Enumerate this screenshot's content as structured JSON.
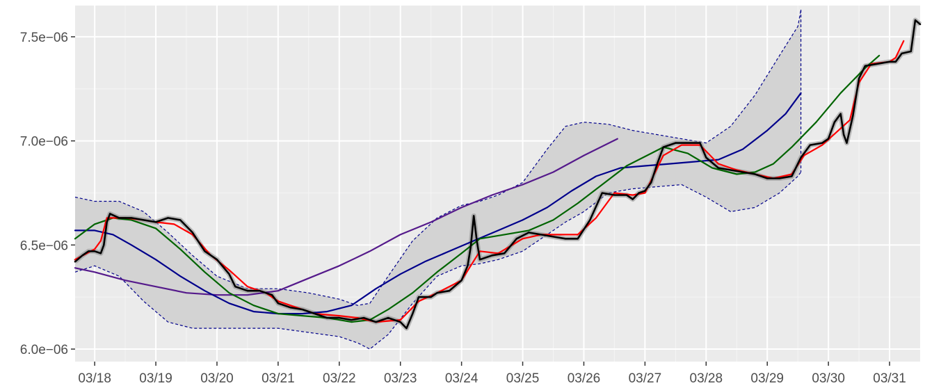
{
  "chart_data": {
    "type": "line",
    "title": "",
    "xlabel": "",
    "ylabel": "",
    "x_tick_labels": [
      "03/18",
      "03/19",
      "03/20",
      "03/21",
      "03/22",
      "03/23",
      "03/24",
      "03/25",
      "03/26",
      "03/27",
      "03/28",
      "03/29",
      "03/30",
      "03/31"
    ],
    "x_tick_days": [
      1,
      2,
      3,
      4,
      5,
      6,
      7,
      8,
      9,
      10,
      11,
      12,
      13,
      14
    ],
    "xlim_days": [
      0.68,
      14.5
    ],
    "y_tick_values": [
      6e-06,
      6.5e-06,
      7e-06,
      7.5e-06
    ],
    "y_tick_labels": [
      "6.0e−06",
      "6.5e−06",
      "7.0e−06",
      "7.5e−06"
    ],
    "ylim": [
      5.94e-06,
      7.65e-06
    ],
    "grid": true,
    "background": "#ebebeb",
    "band": {
      "fill": "#d3d3d3",
      "border_color": "#00008b",
      "upper": [
        [
          0.68,
          6.73e-06
        ],
        [
          1.0,
          6.71e-06
        ],
        [
          1.4,
          6.71e-06
        ],
        [
          1.8,
          6.66e-06
        ],
        [
          2.2,
          6.56e-06
        ],
        [
          2.6,
          6.45e-06
        ],
        [
          3.0,
          6.35e-06
        ],
        [
          3.5,
          6.29e-06
        ],
        [
          4.0,
          6.29e-06
        ],
        [
          4.5,
          6.27e-06
        ],
        [
          5.0,
          6.24e-06
        ],
        [
          5.3,
          6.21e-06
        ],
        [
          5.5,
          6.22e-06
        ],
        [
          5.8,
          6.35e-06
        ],
        [
          6.2,
          6.52e-06
        ],
        [
          6.6,
          6.63e-06
        ],
        [
          7.0,
          6.69e-06
        ],
        [
          7.3,
          6.71e-06
        ],
        [
          7.6,
          6.74e-06
        ],
        [
          8.0,
          6.8e-06
        ],
        [
          8.4,
          6.96e-06
        ],
        [
          8.7,
          7.07e-06
        ],
        [
          9.0,
          7.09e-06
        ],
        [
          9.4,
          7.08e-06
        ],
        [
          9.8,
          7.05e-06
        ],
        [
          10.2,
          7.03e-06
        ],
        [
          10.6,
          7.01e-06
        ],
        [
          11.0,
          6.99e-06
        ],
        [
          11.4,
          7.07e-06
        ],
        [
          11.8,
          7.22e-06
        ],
        [
          12.2,
          7.41e-06
        ],
        [
          12.5,
          7.55e-06
        ],
        [
          12.55,
          7.63e-06
        ]
      ],
      "lower": [
        [
          0.68,
          6.37e-06
        ],
        [
          1.0,
          6.4e-06
        ],
        [
          1.4,
          6.35e-06
        ],
        [
          1.8,
          6.23e-06
        ],
        [
          2.2,
          6.13e-06
        ],
        [
          2.6,
          6.1e-06
        ],
        [
          3.0,
          6.1e-06
        ],
        [
          3.5,
          6.1e-06
        ],
        [
          4.0,
          6.1e-06
        ],
        [
          4.5,
          6.08e-06
        ],
        [
          5.0,
          6.06e-06
        ],
        [
          5.3,
          6.03e-06
        ],
        [
          5.5,
          6e-06
        ],
        [
          5.8,
          6.07e-06
        ],
        [
          6.2,
          6.22e-06
        ],
        [
          6.6,
          6.35e-06
        ],
        [
          7.0,
          6.4e-06
        ],
        [
          7.3,
          6.41e-06
        ],
        [
          7.6,
          6.43e-06
        ],
        [
          8.0,
          6.47e-06
        ],
        [
          8.4,
          6.55e-06
        ],
        [
          8.7,
          6.61e-06
        ],
        [
          9.0,
          6.66e-06
        ],
        [
          9.4,
          6.75e-06
        ],
        [
          9.8,
          6.77e-06
        ],
        [
          10.2,
          6.78e-06
        ],
        [
          10.6,
          6.79e-06
        ],
        [
          11.0,
          6.73e-06
        ],
        [
          11.4,
          6.66e-06
        ],
        [
          11.8,
          6.68e-06
        ],
        [
          12.2,
          6.75e-06
        ],
        [
          12.5,
          6.83e-06
        ],
        [
          12.55,
          6.85e-06
        ]
      ]
    },
    "series": [
      {
        "color": "#000000",
        "width": 2.6,
        "values": [
          [
            0.68,
            6.42e-06
          ],
          [
            0.8,
            6.45e-06
          ],
          [
            0.9,
            6.47e-06
          ],
          [
            1.0,
            6.47e-06
          ],
          [
            1.1,
            6.46e-06
          ],
          [
            1.15,
            6.5e-06
          ],
          [
            1.2,
            6.61e-06
          ],
          [
            1.25,
            6.65e-06
          ],
          [
            1.4,
            6.63e-06
          ],
          [
            1.6,
            6.63e-06
          ],
          [
            1.8,
            6.62e-06
          ],
          [
            2.0,
            6.61e-06
          ],
          [
            2.2,
            6.63e-06
          ],
          [
            2.4,
            6.62e-06
          ],
          [
            2.6,
            6.56e-06
          ],
          [
            2.8,
            6.47e-06
          ],
          [
            3.0,
            6.43e-06
          ],
          [
            3.2,
            6.36e-06
          ],
          [
            3.3,
            6.3e-06
          ],
          [
            3.5,
            6.28e-06
          ],
          [
            3.7,
            6.28e-06
          ],
          [
            3.9,
            6.26e-06
          ],
          [
            4.0,
            6.22e-06
          ],
          [
            4.2,
            6.2e-06
          ],
          [
            4.4,
            6.19e-06
          ],
          [
            4.6,
            6.17e-06
          ],
          [
            4.8,
            6.15e-06
          ],
          [
            5.0,
            6.15e-06
          ],
          [
            5.2,
            6.14e-06
          ],
          [
            5.4,
            6.15e-06
          ],
          [
            5.6,
            6.13e-06
          ],
          [
            5.8,
            6.15e-06
          ],
          [
            6.0,
            6.13e-06
          ],
          [
            6.1,
            6.1e-06
          ],
          [
            6.2,
            6.17e-06
          ],
          [
            6.3,
            6.25e-06
          ],
          [
            6.5,
            6.25e-06
          ],
          [
            6.6,
            6.27e-06
          ],
          [
            6.8,
            6.28e-06
          ],
          [
            7.0,
            6.33e-06
          ],
          [
            7.1,
            6.4e-06
          ],
          [
            7.15,
            6.49e-06
          ],
          [
            7.2,
            6.64e-06
          ],
          [
            7.25,
            6.52e-06
          ],
          [
            7.3,
            6.43e-06
          ],
          [
            7.5,
            6.45e-06
          ],
          [
            7.7,
            6.46e-06
          ],
          [
            7.9,
            6.53e-06
          ],
          [
            8.1,
            6.56e-06
          ],
          [
            8.3,
            6.55e-06
          ],
          [
            8.5,
            6.54e-06
          ],
          [
            8.7,
            6.53e-06
          ],
          [
            8.9,
            6.53e-06
          ],
          [
            9.1,
            6.62e-06
          ],
          [
            9.3,
            6.75e-06
          ],
          [
            9.5,
            6.74e-06
          ],
          [
            9.7,
            6.74e-06
          ],
          [
            9.8,
            6.72e-06
          ],
          [
            9.9,
            6.75e-06
          ],
          [
            10.0,
            6.76e-06
          ],
          [
            10.1,
            6.8e-06
          ],
          [
            10.2,
            6.89e-06
          ],
          [
            10.3,
            6.97e-06
          ],
          [
            10.5,
            6.99e-06
          ],
          [
            10.7,
            6.99e-06
          ],
          [
            10.9,
            6.99e-06
          ],
          [
            11.0,
            6.92e-06
          ],
          [
            11.2,
            6.87e-06
          ],
          [
            11.4,
            6.86e-06
          ],
          [
            11.6,
            6.85e-06
          ],
          [
            11.8,
            6.84e-06
          ],
          [
            12.0,
            6.82e-06
          ],
          [
            12.2,
            6.82e-06
          ],
          [
            12.4,
            6.83e-06
          ],
          [
            12.55,
            6.92e-06
          ],
          [
            12.7,
            6.98e-06
          ],
          [
            12.9,
            6.99e-06
          ],
          [
            13.0,
            7.01e-06
          ],
          [
            13.1,
            7.09e-06
          ],
          [
            13.2,
            7.13e-06
          ],
          [
            13.25,
            7.03e-06
          ],
          [
            13.3,
            6.99e-06
          ],
          [
            13.4,
            7.12e-06
          ],
          [
            13.5,
            7.3e-06
          ],
          [
            13.6,
            7.36e-06
          ],
          [
            13.8,
            7.37e-06
          ],
          [
            14.0,
            7.38e-06
          ],
          [
            14.1,
            7.38e-06
          ],
          [
            14.2,
            7.42e-06
          ],
          [
            14.35,
            7.43e-06
          ],
          [
            14.42,
            7.58e-06
          ],
          [
            14.5,
            7.56e-06
          ]
        ]
      },
      {
        "color": "#ff0000",
        "width": 2.2,
        "values": [
          [
            0.68,
            6.43e-06
          ],
          [
            1.0,
            6.48e-06
          ],
          [
            1.1,
            6.52e-06
          ],
          [
            1.2,
            6.63e-06
          ],
          [
            1.5,
            6.63e-06
          ],
          [
            1.8,
            6.62e-06
          ],
          [
            2.0,
            6.61e-06
          ],
          [
            2.3,
            6.6e-06
          ],
          [
            2.6,
            6.55e-06
          ],
          [
            2.9,
            6.45e-06
          ],
          [
            3.2,
            6.38e-06
          ],
          [
            3.5,
            6.3e-06
          ],
          [
            3.8,
            6.27e-06
          ],
          [
            4.0,
            6.23e-06
          ],
          [
            4.3,
            6.2e-06
          ],
          [
            4.6,
            6.17e-06
          ],
          [
            5.0,
            6.16e-06
          ],
          [
            5.3,
            6.15e-06
          ],
          [
            5.6,
            6.13e-06
          ],
          [
            6.0,
            6.14e-06
          ],
          [
            6.3,
            6.23e-06
          ],
          [
            6.6,
            6.27e-06
          ],
          [
            7.0,
            6.33e-06
          ],
          [
            7.3,
            6.47e-06
          ],
          [
            7.6,
            6.46e-06
          ],
          [
            8.0,
            6.53e-06
          ],
          [
            8.3,
            6.55e-06
          ],
          [
            8.6,
            6.55e-06
          ],
          [
            8.9,
            6.55e-06
          ],
          [
            9.2,
            6.63e-06
          ],
          [
            9.5,
            6.75e-06
          ],
          [
            9.8,
            6.74e-06
          ],
          [
            10.0,
            6.75e-06
          ],
          [
            10.3,
            6.93e-06
          ],
          [
            10.6,
            6.98e-06
          ],
          [
            10.9,
            6.98e-06
          ],
          [
            11.2,
            6.89e-06
          ],
          [
            11.5,
            6.86e-06
          ],
          [
            11.8,
            6.84e-06
          ],
          [
            12.1,
            6.82e-06
          ],
          [
            12.4,
            6.84e-06
          ],
          [
            12.6,
            6.93e-06
          ],
          [
            12.9,
            6.98e-06
          ],
          [
            13.2,
            7.06e-06
          ],
          [
            13.35,
            7.1e-06
          ],
          [
            13.5,
            7.28e-06
          ],
          [
            13.7,
            7.37e-06
          ],
          [
            14.0,
            7.38e-06
          ],
          [
            14.1,
            7.4e-06
          ],
          [
            14.23,
            7.48e-06
          ]
        ]
      },
      {
        "color": "#006400",
        "width": 2.2,
        "values": [
          [
            0.68,
            6.53e-06
          ],
          [
            1.0,
            6.6e-06
          ],
          [
            1.3,
            6.63e-06
          ],
          [
            1.6,
            6.62e-06
          ],
          [
            2.0,
            6.58e-06
          ],
          [
            2.4,
            6.48e-06
          ],
          [
            2.8,
            6.37e-06
          ],
          [
            3.2,
            6.27e-06
          ],
          [
            3.6,
            6.21e-06
          ],
          [
            4.0,
            6.17e-06
          ],
          [
            4.4,
            6.16e-06
          ],
          [
            4.8,
            6.15e-06
          ],
          [
            5.2,
            6.13e-06
          ],
          [
            5.5,
            6.14e-06
          ],
          [
            5.8,
            6.19e-06
          ],
          [
            6.2,
            6.27e-06
          ],
          [
            6.6,
            6.37e-06
          ],
          [
            7.0,
            6.46e-06
          ],
          [
            7.3,
            6.53e-06
          ],
          [
            7.7,
            6.55e-06
          ],
          [
            8.1,
            6.57e-06
          ],
          [
            8.5,
            6.62e-06
          ],
          [
            8.9,
            6.7e-06
          ],
          [
            9.3,
            6.79e-06
          ],
          [
            9.7,
            6.88e-06
          ],
          [
            10.1,
            6.94e-06
          ],
          [
            10.3,
            6.97e-06
          ],
          [
            10.7,
            6.94e-06
          ],
          [
            11.1,
            6.87e-06
          ],
          [
            11.5,
            6.84e-06
          ],
          [
            11.8,
            6.85e-06
          ],
          [
            12.1,
            6.89e-06
          ],
          [
            12.4,
            6.97e-06
          ],
          [
            12.8,
            7.09e-06
          ],
          [
            13.2,
            7.23e-06
          ],
          [
            13.6,
            7.35e-06
          ],
          [
            13.83,
            7.41e-06
          ]
        ]
      },
      {
        "color": "#00008b",
        "width": 2.2,
        "values": [
          [
            0.68,
            6.57e-06
          ],
          [
            1.0,
            6.57e-06
          ],
          [
            1.3,
            6.55e-06
          ],
          [
            1.6,
            6.5e-06
          ],
          [
            2.0,
            6.43e-06
          ],
          [
            2.4,
            6.35e-06
          ],
          [
            2.8,
            6.28e-06
          ],
          [
            3.2,
            6.22e-06
          ],
          [
            3.6,
            6.18e-06
          ],
          [
            4.0,
            6.17e-06
          ],
          [
            4.4,
            6.17e-06
          ],
          [
            4.8,
            6.18e-06
          ],
          [
            5.2,
            6.21e-06
          ],
          [
            5.6,
            6.29e-06
          ],
          [
            6.0,
            6.36e-06
          ],
          [
            6.4,
            6.42e-06
          ],
          [
            6.8,
            6.47e-06
          ],
          [
            7.2,
            6.52e-06
          ],
          [
            7.6,
            6.57e-06
          ],
          [
            8.0,
            6.62e-06
          ],
          [
            8.4,
            6.68e-06
          ],
          [
            8.8,
            6.76e-06
          ],
          [
            9.2,
            6.83e-06
          ],
          [
            9.6,
            6.87e-06
          ],
          [
            10.0,
            6.88e-06
          ],
          [
            10.4,
            6.89e-06
          ],
          [
            10.8,
            6.9e-06
          ],
          [
            11.2,
            6.91e-06
          ],
          [
            11.6,
            6.96e-06
          ],
          [
            12.0,
            7.05e-06
          ],
          [
            12.3,
            7.13e-06
          ],
          [
            12.55,
            7.23e-06
          ]
        ]
      },
      {
        "color": "#551a8b",
        "width": 2.2,
        "values": [
          [
            0.68,
            6.39e-06
          ],
          [
            1.0,
            6.37e-06
          ],
          [
            1.5,
            6.33e-06
          ],
          [
            2.0,
            6.3e-06
          ],
          [
            2.5,
            6.27e-06
          ],
          [
            3.0,
            6.26e-06
          ],
          [
            3.5,
            6.26e-06
          ],
          [
            4.0,
            6.28e-06
          ],
          [
            4.5,
            6.34e-06
          ],
          [
            5.0,
            6.4e-06
          ],
          [
            5.5,
            6.47e-06
          ],
          [
            6.0,
            6.55e-06
          ],
          [
            6.5,
            6.61e-06
          ],
          [
            7.0,
            6.68e-06
          ],
          [
            7.5,
            6.74e-06
          ],
          [
            8.0,
            6.79e-06
          ],
          [
            8.5,
            6.85e-06
          ],
          [
            9.0,
            6.93e-06
          ],
          [
            9.55,
            7.01e-06
          ]
        ]
      }
    ]
  }
}
